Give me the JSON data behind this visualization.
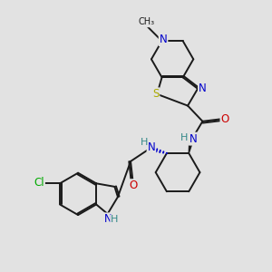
{
  "background_color": "#e2e2e2",
  "bond_color": "#1a1a1a",
  "atom_colors": {
    "N": "#0000cc",
    "S": "#aaaa00",
    "O": "#cc0000",
    "Cl": "#00aa00",
    "H": "#338888",
    "C": "#1a1a1a"
  },
  "font_size": 8.5,
  "lw": 1.4
}
